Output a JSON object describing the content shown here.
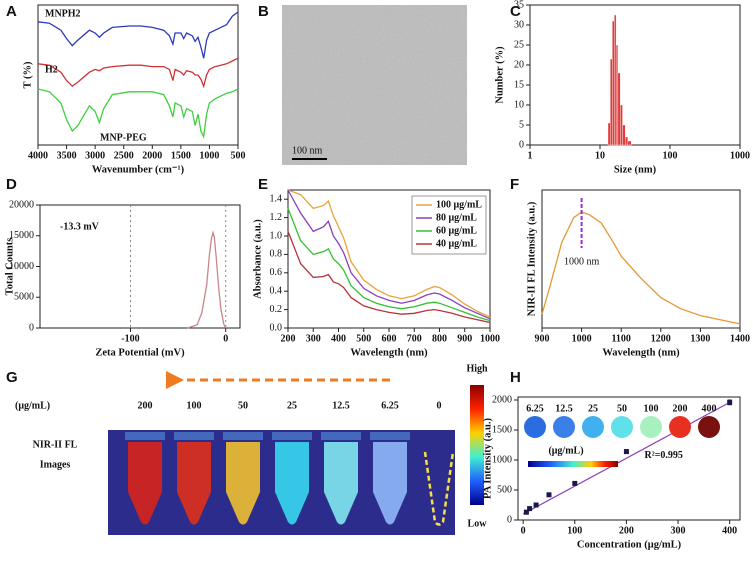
{
  "chart_data": [
    {
      "type": "line",
      "panel": "A",
      "xlabel": "Wavenumber (cm⁻¹)",
      "ylabel": "T (%)",
      "x": [
        4000,
        3800,
        3600,
        3500,
        3400,
        3300,
        3100,
        3000,
        2925,
        2850,
        2700,
        2400,
        2200,
        2000,
        1800,
        1700,
        1640,
        1600,
        1500,
        1450,
        1400,
        1300,
        1250,
        1200,
        1150,
        1100,
        1050,
        1000,
        900,
        800,
        700,
        600,
        500
      ],
      "xlim": [
        4000,
        500
      ],
      "xticks": [
        4000,
        3500,
        3000,
        2500,
        2000,
        1500,
        1000,
        500
      ],
      "ylim": [
        0,
        100
      ],
      "series": [
        {
          "name": "MNPH2",
          "color": "#2b3bb5",
          "values": [
            88,
            87,
            82,
            76,
            71,
            75,
            82,
            80,
            77,
            80,
            84,
            85,
            85,
            84,
            82,
            78,
            72,
            80,
            80,
            76,
            80,
            78,
            74,
            77,
            70,
            62,
            75,
            80,
            82,
            84,
            86,
            92,
            95
          ]
        },
        {
          "name": "H2",
          "color": "#cc3333",
          "values": [
            58,
            57,
            52,
            46,
            42,
            45,
            52,
            54,
            53,
            55,
            56,
            57,
            57,
            56,
            56,
            54,
            46,
            54,
            52,
            50,
            53,
            52,
            50,
            50,
            47,
            42,
            50,
            54,
            56,
            57,
            58,
            60,
            62
          ]
        },
        {
          "name": "MNP-PEG",
          "color": "#3fcf3f",
          "values": [
            40,
            38,
            30,
            18,
            10,
            14,
            28,
            24,
            16,
            26,
            36,
            38,
            38,
            38,
            36,
            28,
            20,
            30,
            28,
            20,
            26,
            24,
            14,
            22,
            10,
            6,
            22,
            30,
            33,
            35,
            37,
            38,
            40
          ]
        }
      ]
    },
    {
      "type": "image",
      "panel": "B",
      "scale_bar": "100 nm"
    },
    {
      "type": "histogram",
      "panel": "C",
      "xlabel": "Size (nm)",
      "ylabel": "Number (%)",
      "log_x": true,
      "bins": [
        13,
        14,
        15,
        16,
        17,
        18,
        19.5,
        21,
        23,
        25,
        28
      ],
      "values": [
        5.5,
        21.5,
        31,
        32.5,
        25,
        18,
        10,
        5,
        2,
        1
      ],
      "color": "#e03a3a",
      "xlim": [
        1,
        1000
      ],
      "xticks": [
        1,
        10,
        100,
        1000
      ],
      "ylim": [
        0,
        35
      ],
      "yticks": [
        0,
        5,
        10,
        15,
        20,
        25,
        30,
        35
      ]
    },
    {
      "type": "line",
      "panel": "D",
      "xlabel": "Zeta Potential (mV)",
      "ylabel": "Total Counts",
      "annotation": "-13.3 mV",
      "grid": true,
      "x": [
        -40,
        -30,
        -25,
        -20,
        -17,
        -15,
        -13.3,
        -12,
        -10,
        -7,
        -5,
        -2,
        0
      ],
      "series": [
        {
          "color": "#c9868a",
          "values": [
            0,
            500,
            2500,
            7000,
            12000,
            14500,
            15500,
            14800,
            11500,
            6000,
            3000,
            600,
            0
          ]
        }
      ],
      "xlim": [
        -195,
        15
      ],
      "xticks": [
        -100,
        0
      ],
      "ylim": [
        0,
        20000
      ],
      "yticks": [
        0,
        5000,
        10000,
        15000,
        20000
      ]
    },
    {
      "type": "line",
      "panel": "E",
      "xlabel": "Wavelength (nm)",
      "ylabel": "Absorbance (a.u.)",
      "legend": "top-right",
      "x": [
        200,
        250,
        300,
        340,
        360,
        380,
        400,
        420,
        450,
        500,
        550,
        600,
        650,
        700,
        750,
        780,
        800,
        850,
        900,
        950,
        1000
      ],
      "xlim": [
        200,
        1000
      ],
      "xticks": [
        200,
        300,
        400,
        500,
        600,
        700,
        800,
        900,
        1000
      ],
      "ylim": [
        0,
        1.5
      ],
      "yticks": [
        {
          "value": 0,
          "label": "0.0"
        },
        0.2,
        0.4,
        0.6,
        0.8,
        {
          "value": 1,
          "label": "1.0"
        },
        1.2,
        1.4
      ],
      "series": [
        {
          "name": "100 μg/mL",
          "color": "#e8a33a",
          "values": [
            1.5,
            1.45,
            1.3,
            1.33,
            1.38,
            1.22,
            1.1,
            0.98,
            0.72,
            0.52,
            0.42,
            0.35,
            0.32,
            0.35,
            0.42,
            0.45,
            0.44,
            0.36,
            0.26,
            0.18,
            0.12
          ]
        },
        {
          "name": "80 μg/mL",
          "color": "#8a3fc0",
          "values": [
            1.5,
            1.25,
            1.05,
            1.1,
            1.16,
            1,
            0.92,
            0.82,
            0.6,
            0.43,
            0.35,
            0.3,
            0.27,
            0.3,
            0.36,
            0.38,
            0.37,
            0.3,
            0.22,
            0.16,
            0.1
          ]
        },
        {
          "name": "60 μg/mL",
          "color": "#33c233",
          "values": [
            1.3,
            0.95,
            0.8,
            0.83,
            0.86,
            0.75,
            0.7,
            0.63,
            0.46,
            0.33,
            0.27,
            0.23,
            0.21,
            0.23,
            0.27,
            0.28,
            0.27,
            0.22,
            0.17,
            0.12,
            0.08
          ]
        },
        {
          "name": "40 μg/mL",
          "color": "#b8333a",
          "values": [
            1.05,
            0.7,
            0.55,
            0.56,
            0.58,
            0.5,
            0.48,
            0.44,
            0.33,
            0.24,
            0.2,
            0.17,
            0.15,
            0.16,
            0.19,
            0.2,
            0.19,
            0.16,
            0.12,
            0.09,
            0.06
          ]
        }
      ]
    },
    {
      "type": "line",
      "panel": "F",
      "xlabel": "Wavelength (nm)",
      "ylabel": "NIR-II FL Intensity (a.u.)",
      "x": [
        900,
        920,
        950,
        980,
        1000,
        1020,
        1050,
        1080,
        1100,
        1150,
        1200,
        1250,
        1300,
        1350,
        1400
      ],
      "series": [
        {
          "color": "#e39a35",
          "values": [
            10,
            30,
            62,
            80,
            84,
            82,
            76,
            62,
            52,
            36,
            22,
            14,
            9,
            6,
            3
          ]
        }
      ],
      "marker": {
        "x": 1000,
        "label": "1000 nm",
        "color": "#9a2fd0"
      },
      "xlim": [
        900,
        1400
      ],
      "xticks": [
        900,
        1000,
        1100,
        1200,
        1300,
        1400
      ],
      "ylim": [
        0,
        100
      ]
    },
    {
      "type": "tubes",
      "panel": "G",
      "unit": "(μg/mL)",
      "row_label": [
        "NIR-II FL",
        "Images"
      ],
      "high": "High",
      "low": "Low",
      "categories": [
        200,
        100,
        50,
        25,
        12.5,
        6.25,
        0
      ],
      "colors": [
        "#d8231a",
        "#e0301a",
        "#f0c030",
        "#38d8f0",
        "#7fe8f0",
        "#8fb8f8",
        null
      ]
    },
    {
      "type": "scatter",
      "panel": "H",
      "xlabel": "Concentration (μg/mL)",
      "ylabel": "PA Intensity (a.u.)",
      "annotation": "R²=0.995",
      "x": [
        6.25,
        12.5,
        25,
        50,
        100,
        200,
        400
      ],
      "values": [
        130,
        190,
        250,
        420,
        610,
        1140,
        1960
      ],
      "errors": [
        30,
        25,
        20,
        20,
        30,
        30,
        40
      ],
      "color": "#1a1a4a",
      "fit": {
        "x": [
          0,
          400
        ],
        "values": [
          100,
          1960
        ],
        "color": "#8a3fb8"
      },
      "inset": {
        "labels": [
          6.25,
          12.5,
          25,
          50,
          100,
          200,
          400
        ],
        "colors": [
          "#2a6de0",
          "#3a80e8",
          "#40b0f0",
          "#60e0e8",
          "#a8f0c0",
          "#e83020",
          "#7a1010"
        ],
        "unit": "(μg/mL)"
      },
      "xlim": [
        -10,
        420
      ],
      "xticks": [
        0,
        100,
        200,
        300,
        400
      ],
      "ylim": [
        0,
        2050
      ],
      "yticks": [
        0,
        500,
        1000,
        1500,
        2000
      ]
    }
  ]
}
